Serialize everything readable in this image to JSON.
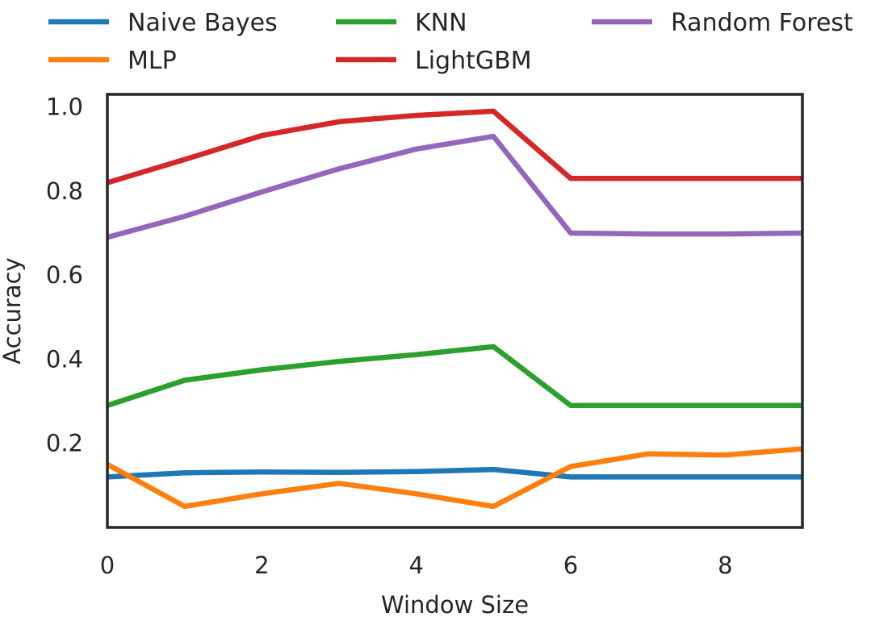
{
  "chart_data": {
    "type": "line",
    "title": "",
    "xlabel": "Window Size",
    "ylabel": "Accuracy",
    "xlim": [
      0,
      9
    ],
    "ylim": [
      0.0,
      1.03
    ],
    "xticks": [
      0,
      2,
      4,
      6,
      8
    ],
    "xtick_labels": [
      "0",
      "2",
      "4",
      "6",
      "8"
    ],
    "yticks": [
      0.2,
      0.4,
      0.6,
      0.8,
      1.0
    ],
    "ytick_labels": [
      "0.2",
      "0.4",
      "0.6",
      "0.8",
      "1.0"
    ],
    "grid": false,
    "legend_position": "top",
    "x": [
      0,
      1,
      2,
      3,
      4,
      5,
      6,
      7,
      8,
      9
    ],
    "series": [
      {
        "name": "Naive Bayes",
        "color": "#1f77b4",
        "values": [
          0.12,
          0.13,
          0.132,
          0.131,
          0.133,
          0.138,
          0.12,
          0.12,
          0.12,
          0.12
        ]
      },
      {
        "name": "MLP",
        "color": "#ff7f0e",
        "values": [
          0.15,
          0.05,
          0.08,
          0.105,
          0.08,
          0.05,
          0.145,
          0.175,
          0.172,
          0.187
        ]
      },
      {
        "name": "KNN",
        "color": "#2ca02c",
        "values": [
          0.29,
          0.35,
          0.375,
          0.395,
          0.411,
          0.43,
          0.29,
          0.29,
          0.29,
          0.29
        ]
      },
      {
        "name": "LightGBM",
        "color": "#d62728",
        "values": [
          0.82,
          0.875,
          0.932,
          0.965,
          0.98,
          0.99,
          0.83,
          0.83,
          0.83,
          0.83
        ]
      },
      {
        "name": "Random Forest",
        "color": "#9467bd",
        "values": [
          0.69,
          0.74,
          0.798,
          0.853,
          0.9,
          0.93,
          0.7,
          0.698,
          0.698,
          0.7
        ]
      }
    ]
  }
}
